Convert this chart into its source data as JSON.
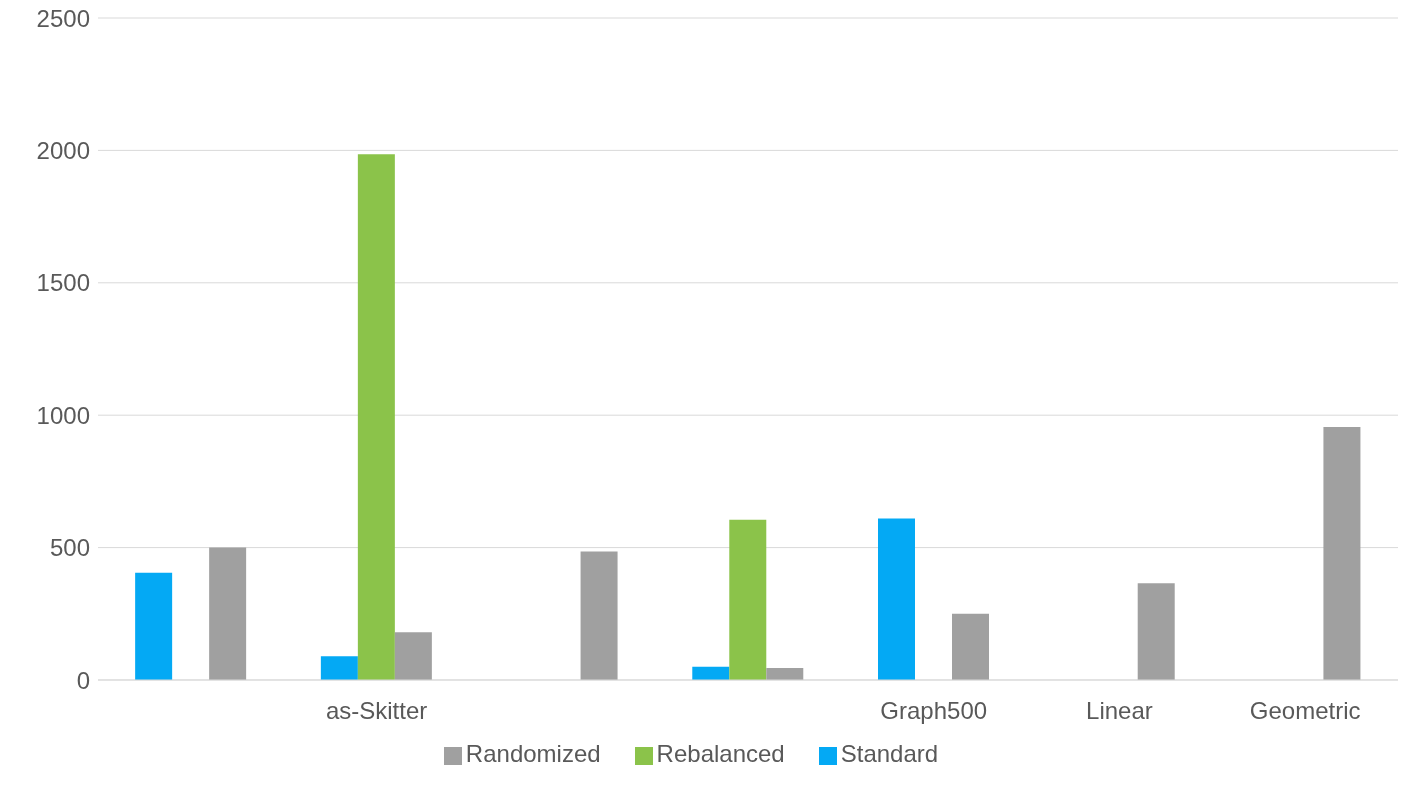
{
  "chart_data": {
    "type": "bar",
    "categories": [
      null,
      "as-Skitter",
      null,
      null,
      "Graph500",
      "Linear",
      "Geometric"
    ],
    "series": [
      {
        "name": "Standard",
        "color": "#04a9f4",
        "values": [
          405,
          90,
          null,
          50,
          610,
          null,
          null
        ]
      },
      {
        "name": "Rebalanced",
        "color": "#8bc34a",
        "values": [
          null,
          1985,
          null,
          605,
          null,
          null,
          null
        ]
      },
      {
        "name": "Randomized",
        "color": "#a0a0a0",
        "values": [
          500,
          180,
          485,
          45,
          250,
          365,
          955
        ]
      }
    ],
    "ylim": [
      0,
      2500
    ],
    "yticks": [
      0,
      500,
      1000,
      1500,
      2000,
      2500
    ],
    "grid": "y",
    "legend": "bottom"
  }
}
